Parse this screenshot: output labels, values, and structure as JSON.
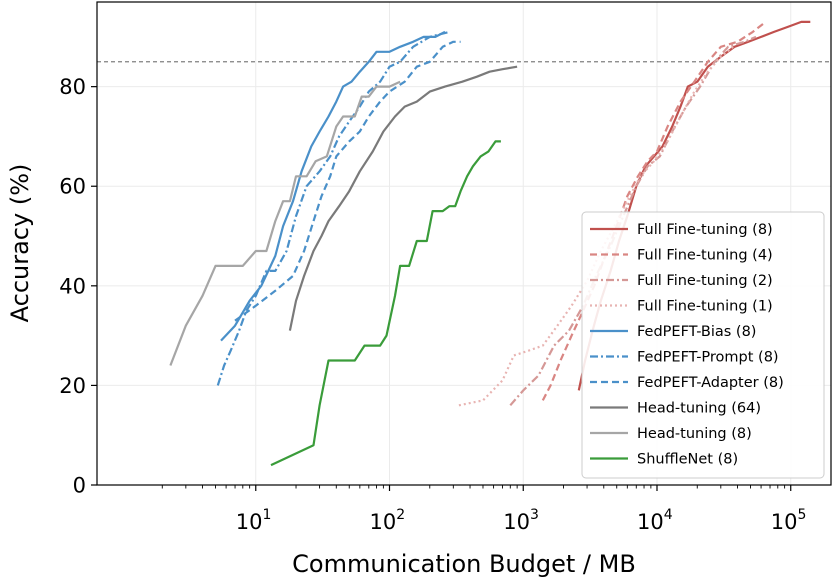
{
  "chart_data": {
    "type": "line",
    "title": "",
    "xlabel": "Communication Budget / MB",
    "ylabel": "Accuracy (%)",
    "x_scale": "log",
    "xlim": [
      0.65,
      200000
    ],
    "ylim": [
      0,
      97
    ],
    "grid": true,
    "legend_position": "lower-right",
    "reference_line": {
      "y": 85,
      "style": "dashed",
      "color": "#808080"
    },
    "x_ticks": [
      {
        "base": "10",
        "exp": "1",
        "value": 10
      },
      {
        "base": "10",
        "exp": "2",
        "value": 100
      },
      {
        "base": "10",
        "exp": "3",
        "value": 1000
      },
      {
        "base": "10",
        "exp": "4",
        "value": 10000
      },
      {
        "base": "10",
        "exp": "5",
        "value": 100000
      }
    ],
    "y_ticks": [
      {
        "label": "0",
        "value": 0
      },
      {
        "label": "20",
        "value": 20
      },
      {
        "label": "40",
        "value": 40
      },
      {
        "label": "60",
        "value": 60
      },
      {
        "label": "80",
        "value": 80
      }
    ],
    "series": [
      {
        "name": "Full Fine-tuning (8)",
        "color": "#c0504d",
        "dash": "solid",
        "points": [
          [
            2600,
            19
          ],
          [
            2900,
            25
          ],
          [
            3300,
            31
          ],
          [
            3800,
            37
          ],
          [
            4500,
            43
          ],
          [
            5200,
            49
          ],
          [
            6000,
            54
          ],
          [
            7000,
            60
          ],
          [
            8200,
            64
          ],
          [
            9500,
            66
          ],
          [
            11000,
            68
          ],
          [
            13000,
            72
          ],
          [
            15000,
            76
          ],
          [
            17000,
            80
          ],
          [
            20000,
            81
          ],
          [
            24000,
            84
          ],
          [
            30000,
            86
          ],
          [
            38000,
            88
          ],
          [
            48000,
            89
          ],
          [
            60000,
            90
          ],
          [
            75000,
            91
          ],
          [
            95000,
            92
          ],
          [
            120000,
            93
          ],
          [
            140000,
            93
          ]
        ]
      },
      {
        "name": "Full Fine-tuning (4)",
        "color": "#d98683",
        "dash": "dashed",
        "points": [
          [
            1400,
            17
          ],
          [
            1600,
            20
          ],
          [
            1900,
            25
          ],
          [
            2300,
            30
          ],
          [
            2800,
            35
          ],
          [
            3400,
            40
          ],
          [
            4100,
            46
          ],
          [
            5000,
            52
          ],
          [
            6000,
            58
          ],
          [
            7200,
            62
          ],
          [
            8500,
            65
          ],
          [
            10000,
            67
          ],
          [
            12000,
            72
          ],
          [
            15000,
            77
          ],
          [
            19000,
            81
          ],
          [
            24000,
            85
          ],
          [
            30000,
            88
          ],
          [
            40000,
            89
          ],
          [
            52000,
            91
          ],
          [
            65000,
            93
          ]
        ]
      },
      {
        "name": "Full Fine-tuning (2)",
        "color": "#d59896",
        "dash": "dashdot",
        "points": [
          [
            800,
            16
          ],
          [
            1000,
            19
          ],
          [
            1300,
            22
          ],
          [
            1700,
            28
          ],
          [
            2200,
            31
          ],
          [
            2800,
            36
          ],
          [
            3500,
            42
          ],
          [
            4500,
            48
          ],
          [
            5600,
            54
          ],
          [
            7000,
            60
          ],
          [
            8500,
            64
          ],
          [
            10500,
            66
          ],
          [
            13000,
            71
          ],
          [
            16500,
            76
          ],
          [
            21000,
            80
          ],
          [
            27000,
            85
          ],
          [
            34000,
            88
          ],
          [
            45000,
            89
          ],
          [
            55000,
            90
          ]
        ]
      },
      {
        "name": "Full Fine-tuning (1)",
        "color": "#e8b4b2",
        "dash": "dotted",
        "points": [
          [
            330,
            16
          ],
          [
            500,
            17
          ],
          [
            700,
            21
          ],
          [
            850,
            26
          ],
          [
            1100,
            27
          ],
          [
            1400,
            28
          ],
          [
            1800,
            32
          ],
          [
            2300,
            36
          ],
          [
            3000,
            41
          ],
          [
            3800,
            47
          ],
          [
            4800,
            52
          ],
          [
            6000,
            57
          ],
          [
            7500,
            62
          ],
          [
            9500,
            65
          ],
          [
            12000,
            69
          ],
          [
            15000,
            74
          ],
          [
            19000,
            79
          ],
          [
            24000,
            83
          ],
          [
            30000,
            86
          ],
          [
            37000,
            88
          ]
        ]
      },
      {
        "name": "FedPEFT-Bias (8)",
        "color": "#4a90c9",
        "dash": "solid",
        "points": [
          [
            5.5,
            29
          ],
          [
            7,
            32
          ],
          [
            9,
            37
          ],
          [
            11,
            40
          ],
          [
            14,
            46
          ],
          [
            16,
            52
          ],
          [
            19,
            57
          ],
          [
            22,
            63
          ],
          [
            26,
            68
          ],
          [
            30,
            71
          ],
          [
            35,
            74
          ],
          [
            40,
            77
          ],
          [
            45,
            80
          ],
          [
            52,
            81
          ],
          [
            60,
            83
          ],
          [
            70,
            85
          ],
          [
            80,
            87
          ],
          [
            100,
            87
          ],
          [
            120,
            88
          ],
          [
            150,
            89
          ],
          [
            180,
            90
          ],
          [
            220,
            90
          ],
          [
            260,
            91
          ]
        ]
      },
      {
        "name": "FedPEFT-Prompt (8)",
        "color": "#4a90c9",
        "dash": "dashdot",
        "points": [
          [
            5.2,
            20
          ],
          [
            5.8,
            24
          ],
          [
            6.5,
            27
          ],
          [
            7.5,
            31
          ],
          [
            8.5,
            35
          ],
          [
            10,
            38
          ],
          [
            12,
            43
          ],
          [
            14,
            43
          ],
          [
            17,
            47
          ],
          [
            20,
            54
          ],
          [
            24,
            60
          ],
          [
            30,
            63
          ],
          [
            36,
            66
          ],
          [
            42,
            70
          ],
          [
            50,
            73
          ],
          [
            60,
            76
          ],
          [
            70,
            79
          ],
          [
            85,
            81
          ],
          [
            100,
            84
          ],
          [
            120,
            85
          ],
          [
            150,
            88
          ],
          [
            200,
            90
          ],
          [
            280,
            91
          ]
        ]
      },
      {
        "name": "FedPEFT-Adapter (8)",
        "color": "#4a90c9",
        "dash": "dashed",
        "points": [
          [
            7,
            33
          ],
          [
            10,
            36
          ],
          [
            14,
            39
          ],
          [
            19,
            42
          ],
          [
            23,
            47
          ],
          [
            27,
            53
          ],
          [
            31,
            58
          ],
          [
            36,
            62
          ],
          [
            40,
            66
          ],
          [
            50,
            69
          ],
          [
            60,
            71
          ],
          [
            70,
            74
          ],
          [
            85,
            77
          ],
          [
            100,
            79
          ],
          [
            130,
            81
          ],
          [
            160,
            84
          ],
          [
            200,
            85
          ],
          [
            250,
            88
          ],
          [
            300,
            89
          ],
          [
            340,
            89
          ]
        ]
      },
      {
        "name": "Head-tuning (64)",
        "color": "#7a7a7a",
        "dash": "solid",
        "points": [
          [
            18,
            31
          ],
          [
            20,
            37
          ],
          [
            23,
            42
          ],
          [
            27,
            47
          ],
          [
            31,
            50
          ],
          [
            35,
            53
          ],
          [
            42,
            56
          ],
          [
            50,
            59
          ],
          [
            60,
            63
          ],
          [
            75,
            67
          ],
          [
            90,
            71
          ],
          [
            110,
            74
          ],
          [
            130,
            76
          ],
          [
            160,
            77
          ],
          [
            200,
            79
          ],
          [
            260,
            80
          ],
          [
            350,
            81
          ],
          [
            450,
            82
          ],
          [
            560,
            83
          ],
          [
            700,
            83.5
          ],
          [
            900,
            84
          ]
        ]
      },
      {
        "name": "Head-tuning (8)",
        "color": "#a6a6a6",
        "dash": "solid",
        "points": [
          [
            2.3,
            24
          ],
          [
            3,
            32
          ],
          [
            4,
            38
          ],
          [
            5,
            44
          ],
          [
            6,
            44
          ],
          [
            8,
            44
          ],
          [
            10,
            47
          ],
          [
            12,
            47
          ],
          [
            14,
            53
          ],
          [
            16,
            57
          ],
          [
            18,
            57
          ],
          [
            20,
            62
          ],
          [
            24,
            62
          ],
          [
            28,
            65
          ],
          [
            34,
            66
          ],
          [
            40,
            72
          ],
          [
            45,
            74
          ],
          [
            55,
            74
          ],
          [
            62,
            78
          ],
          [
            70,
            78
          ],
          [
            80,
            80
          ],
          [
            100,
            80
          ],
          [
            120,
            81
          ]
        ]
      },
      {
        "name": "ShuffleNet (8)",
        "color": "#3a9c3a",
        "dash": "solid",
        "points": [
          [
            13,
            4
          ],
          [
            27,
            8
          ],
          [
            30,
            16
          ],
          [
            35,
            25
          ],
          [
            45,
            25
          ],
          [
            55,
            25
          ],
          [
            65,
            28
          ],
          [
            75,
            28
          ],
          [
            85,
            28
          ],
          [
            95,
            30
          ],
          [
            110,
            38
          ],
          [
            120,
            44
          ],
          [
            140,
            44
          ],
          [
            160,
            49
          ],
          [
            190,
            49
          ],
          [
            210,
            55
          ],
          [
            250,
            55
          ],
          [
            280,
            56
          ],
          [
            310,
            56
          ],
          [
            340,
            59
          ],
          [
            380,
            62
          ],
          [
            420,
            64
          ],
          [
            480,
            66
          ],
          [
            550,
            67
          ],
          [
            620,
            69
          ],
          [
            680,
            69
          ]
        ]
      }
    ]
  }
}
